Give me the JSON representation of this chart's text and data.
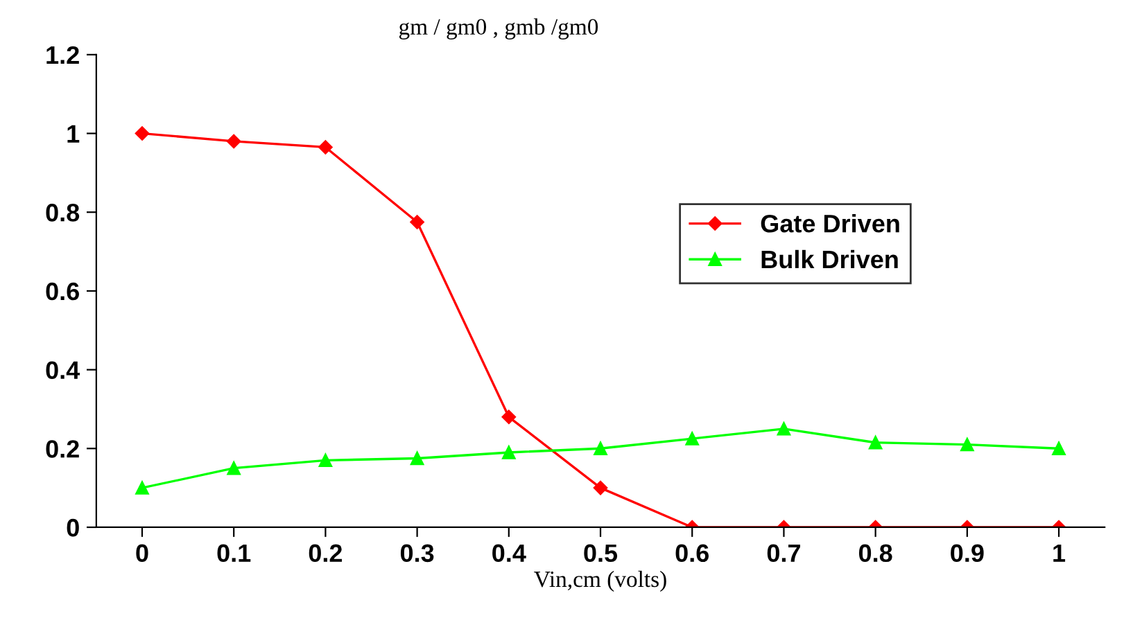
{
  "chart_data": {
    "type": "line",
    "title": "gm / gm0 , gmb /gm0",
    "xlabel": "Vin,cm (volts)",
    "categories": [
      "0",
      "0.1",
      "0.2",
      "0.3",
      "0.4",
      "0.5",
      "0.6",
      "0.7",
      "0.8",
      "0.9",
      "1"
    ],
    "ylim": [
      0,
      1.2
    ],
    "yticks": [
      0,
      0.2,
      0.4,
      0.6,
      0.8,
      1,
      1.2
    ],
    "grid": false,
    "legend": "right",
    "series": [
      {
        "name": "Gate Driven",
        "color": "#ff0000",
        "marker": "diamond",
        "values": [
          1.0,
          0.98,
          0.965,
          0.775,
          0.28,
          0.1,
          0,
          0,
          0,
          0,
          0
        ]
      },
      {
        "name": "Bulk Driven",
        "color": "#00ff00",
        "marker": "triangle",
        "values": [
          0.1,
          0.15,
          0.17,
          0.175,
          0.19,
          0.2,
          0.225,
          0.25,
          0.215,
          0.21,
          0.2
        ]
      }
    ]
  }
}
